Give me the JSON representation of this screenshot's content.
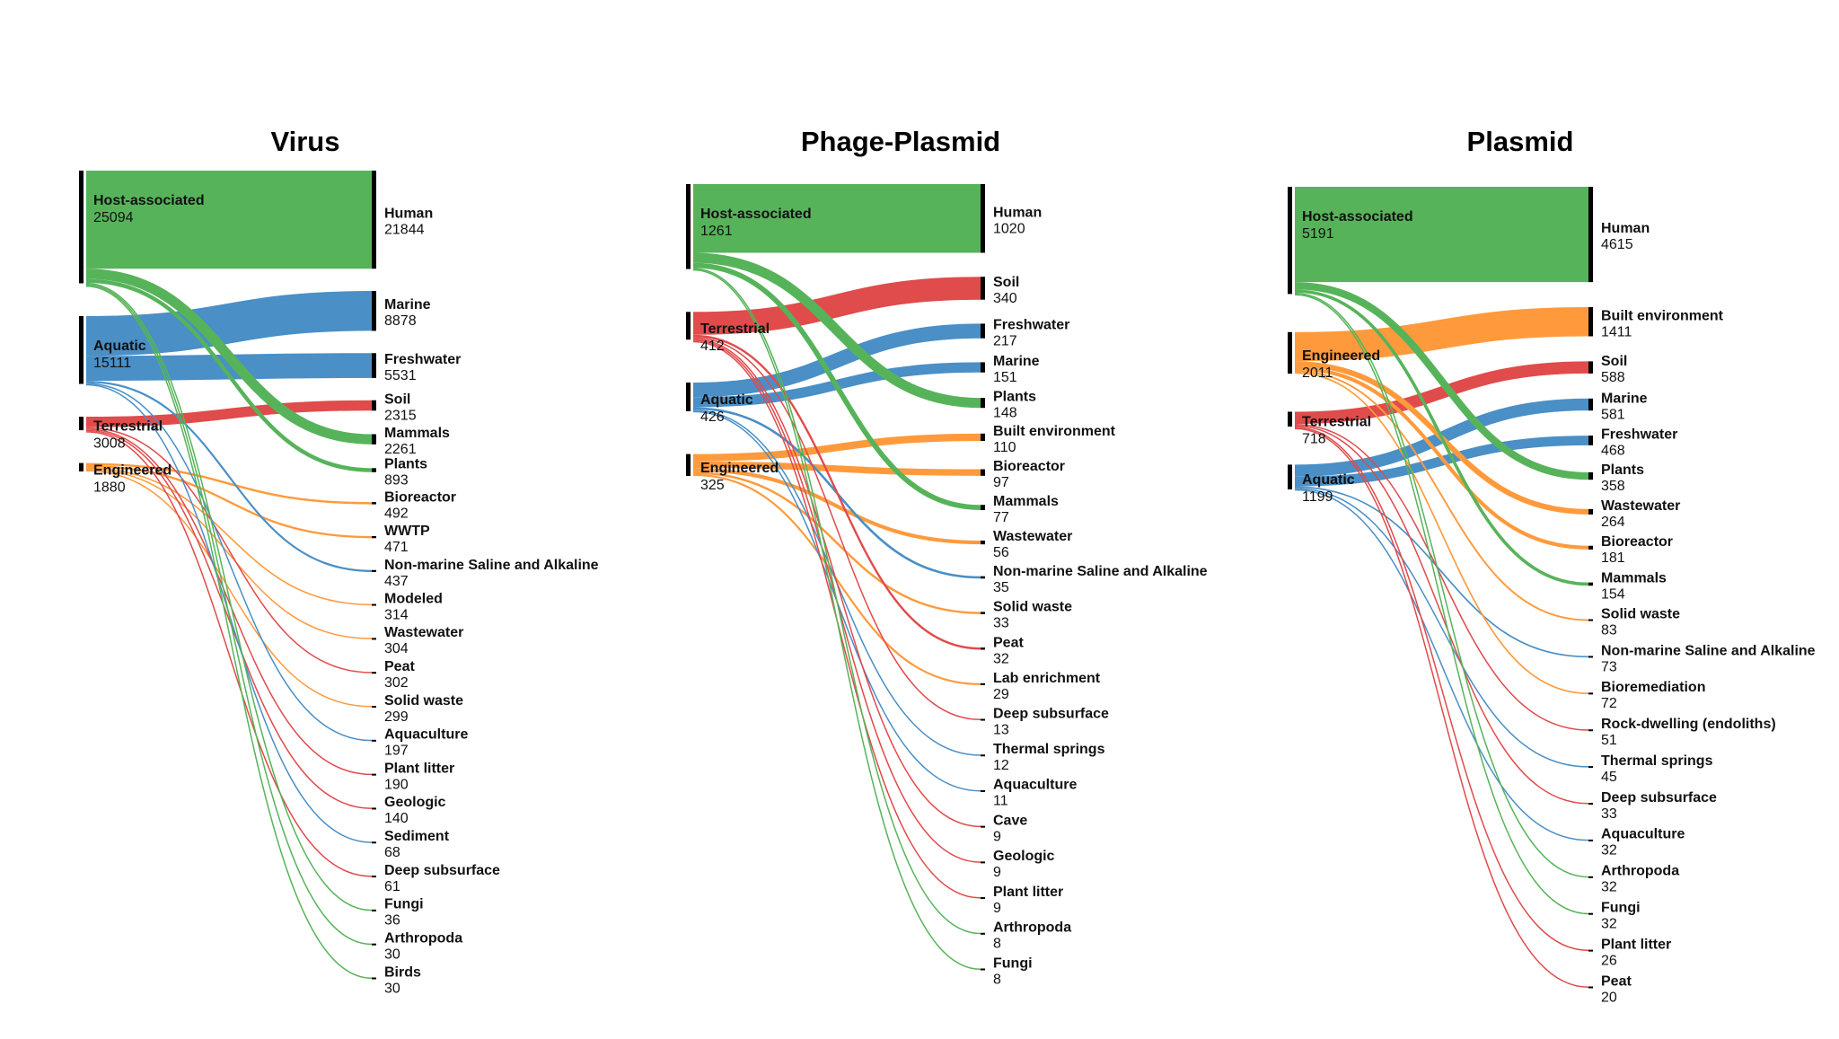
{
  "colors": {
    "Host-associated": "#57b35a",
    "Aquatic": "#4a8fc6",
    "Terrestrial": "#e04b4b",
    "Engineered": "#ff9a3c",
    "node": "#000000"
  },
  "chart_data": [
    {
      "type": "sankey",
      "title": "Virus",
      "sources": [
        {
          "name": "Host-associated",
          "value": 25094
        },
        {
          "name": "Aquatic",
          "value": 15111
        },
        {
          "name": "Terrestrial",
          "value": 3008
        },
        {
          "name": "Engineered",
          "value": 1880
        }
      ],
      "targets": [
        {
          "name": "Human",
          "value": 21844,
          "source": "Host-associated"
        },
        {
          "name": "Marine",
          "value": 8878,
          "source": "Aquatic"
        },
        {
          "name": "Freshwater",
          "value": 5531,
          "source": "Aquatic"
        },
        {
          "name": "Soil",
          "value": 2315,
          "source": "Terrestrial"
        },
        {
          "name": "Mammals",
          "value": 2261,
          "source": "Host-associated"
        },
        {
          "name": "Plants",
          "value": 893,
          "source": "Host-associated"
        },
        {
          "name": "Bioreactor",
          "value": 492,
          "source": "Engineered"
        },
        {
          "name": "WWTP",
          "value": 471,
          "source": "Engineered"
        },
        {
          "name": "Non-marine Saline and Alkaline",
          "value": 437,
          "source": "Aquatic"
        },
        {
          "name": "Modeled",
          "value": 314,
          "source": "Engineered"
        },
        {
          "name": "Wastewater",
          "value": 304,
          "source": "Engineered"
        },
        {
          "name": "Peat",
          "value": 302,
          "source": "Terrestrial"
        },
        {
          "name": "Solid waste",
          "value": 299,
          "source": "Engineered"
        },
        {
          "name": "Aquaculture",
          "value": 197,
          "source": "Aquatic"
        },
        {
          "name": "Plant litter",
          "value": 190,
          "source": "Terrestrial"
        },
        {
          "name": "Geologic",
          "value": 140,
          "source": "Terrestrial"
        },
        {
          "name": "Sediment",
          "value": 68,
          "source": "Aquatic"
        },
        {
          "name": "Deep subsurface",
          "value": 61,
          "source": "Terrestrial"
        },
        {
          "name": "Fungi",
          "value": 36,
          "source": "Host-associated"
        },
        {
          "name": "Arthropoda",
          "value": 30,
          "source": "Host-associated"
        },
        {
          "name": "Birds",
          "value": 30,
          "source": "Host-associated"
        }
      ]
    },
    {
      "type": "sankey",
      "title": "Phage-Plasmid",
      "sources": [
        {
          "name": "Host-associated",
          "value": 1261
        },
        {
          "name": "Terrestrial",
          "value": 412
        },
        {
          "name": "Aquatic",
          "value": 426
        },
        {
          "name": "Engineered",
          "value": 325
        }
      ],
      "targets": [
        {
          "name": "Human",
          "value": 1020,
          "source": "Host-associated"
        },
        {
          "name": "Soil",
          "value": 340,
          "source": "Terrestrial"
        },
        {
          "name": "Freshwater",
          "value": 217,
          "source": "Aquatic"
        },
        {
          "name": "Marine",
          "value": 151,
          "source": "Aquatic"
        },
        {
          "name": "Plants",
          "value": 148,
          "source": "Host-associated"
        },
        {
          "name": "Built environment",
          "value": 110,
          "source": "Engineered"
        },
        {
          "name": "Bioreactor",
          "value": 97,
          "source": "Engineered"
        },
        {
          "name": "Mammals",
          "value": 77,
          "source": "Host-associated"
        },
        {
          "name": "Wastewater",
          "value": 56,
          "source": "Engineered"
        },
        {
          "name": "Non-marine Saline and Alkaline",
          "value": 35,
          "source": "Aquatic"
        },
        {
          "name": "Solid waste",
          "value": 33,
          "source": "Engineered"
        },
        {
          "name": "Peat",
          "value": 32,
          "source": "Terrestrial"
        },
        {
          "name": "Lab enrichment",
          "value": 29,
          "source": "Engineered"
        },
        {
          "name": "Deep subsurface",
          "value": 13,
          "source": "Terrestrial"
        },
        {
          "name": "Thermal springs",
          "value": 12,
          "source": "Aquatic"
        },
        {
          "name": "Aquaculture",
          "value": 11,
          "source": "Aquatic"
        },
        {
          "name": "Cave",
          "value": 9,
          "source": "Terrestrial"
        },
        {
          "name": "Geologic",
          "value": 9,
          "source": "Terrestrial"
        },
        {
          "name": "Plant litter",
          "value": 9,
          "source": "Terrestrial"
        },
        {
          "name": "Arthropoda",
          "value": 8,
          "source": "Host-associated"
        },
        {
          "name": "Fungi",
          "value": 8,
          "source": "Host-associated"
        }
      ]
    },
    {
      "type": "sankey",
      "title": "Plasmid",
      "sources": [
        {
          "name": "Host-associated",
          "value": 5191
        },
        {
          "name": "Engineered",
          "value": 2011
        },
        {
          "name": "Terrestrial",
          "value": 718
        },
        {
          "name": "Aquatic",
          "value": 1199
        }
      ],
      "targets": [
        {
          "name": "Human",
          "value": 4615,
          "source": "Host-associated"
        },
        {
          "name": "Built environment",
          "value": 1411,
          "source": "Engineered"
        },
        {
          "name": "Soil",
          "value": 588,
          "source": "Terrestrial"
        },
        {
          "name": "Marine",
          "value": 581,
          "source": "Aquatic"
        },
        {
          "name": "Freshwater",
          "value": 468,
          "source": "Aquatic"
        },
        {
          "name": "Plants",
          "value": 358,
          "source": "Host-associated"
        },
        {
          "name": "Wastewater",
          "value": 264,
          "source": "Engineered"
        },
        {
          "name": "Bioreactor",
          "value": 181,
          "source": "Engineered"
        },
        {
          "name": "Mammals",
          "value": 154,
          "source": "Host-associated"
        },
        {
          "name": "Solid waste",
          "value": 83,
          "source": "Engineered"
        },
        {
          "name": "Non-marine Saline and Alkaline",
          "value": 73,
          "source": "Aquatic"
        },
        {
          "name": "Bioremediation",
          "value": 72,
          "source": "Engineered"
        },
        {
          "name": "Rock-dwelling (endoliths)",
          "value": 51,
          "source": "Terrestrial"
        },
        {
          "name": "Thermal springs",
          "value": 45,
          "source": "Aquatic"
        },
        {
          "name": "Deep subsurface",
          "value": 33,
          "source": "Terrestrial"
        },
        {
          "name": "Aquaculture",
          "value": 32,
          "source": "Aquatic"
        },
        {
          "name": "Arthropoda",
          "value": 32,
          "source": "Host-associated"
        },
        {
          "name": "Fungi",
          "value": 32,
          "source": "Host-associated"
        },
        {
          "name": "Plant litter",
          "value": 26,
          "source": "Terrestrial"
        },
        {
          "name": "Peat",
          "value": 20,
          "source": "Terrestrial"
        }
      ]
    }
  ]
}
